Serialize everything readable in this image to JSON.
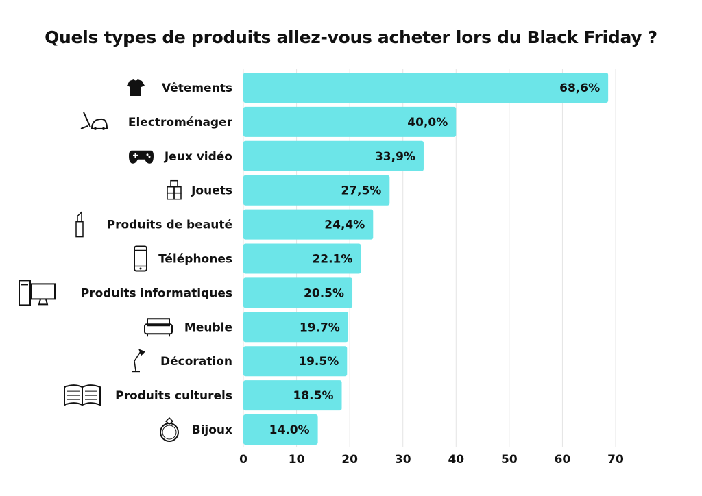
{
  "chart_data": {
    "type": "bar",
    "orientation": "horizontal",
    "title": "Quels types de produits allez-vous acheter lors du Black Friday ?",
    "categories": [
      "Vêtements",
      "Electroménager",
      "Jeux vidéo",
      "Jouets",
      "Produits de beauté",
      "Téléphones",
      "Produits informatiques",
      "Meuble",
      "Décoration",
      "Produits culturels",
      "Bijoux"
    ],
    "values": [
      68.6,
      40.0,
      33.9,
      27.5,
      24.4,
      22.1,
      20.5,
      19.7,
      19.5,
      18.5,
      14.0
    ],
    "data_labels": [
      "68,6%",
      "40,0%",
      "33,9%",
      "27,5%",
      "24,4%",
      "22.1%",
      "20.5%",
      "19.7%",
      "19.5%",
      "18.5%",
      "14.0%"
    ],
    "icons": [
      "tshirt-icon",
      "vacuum-icon",
      "gamepad-icon",
      "toy-blocks-icon",
      "lipstick-icon",
      "phone-icon",
      "computer-icon",
      "sofa-icon",
      "lamp-icon",
      "book-icon",
      "ring-icon"
    ],
    "xlim": [
      0,
      70
    ],
    "xticks": [
      0,
      10,
      20,
      30,
      40,
      50,
      60,
      70
    ],
    "grid": true,
    "bar_color": "#6ce5e8",
    "xlabel": "",
    "ylabel": ""
  }
}
